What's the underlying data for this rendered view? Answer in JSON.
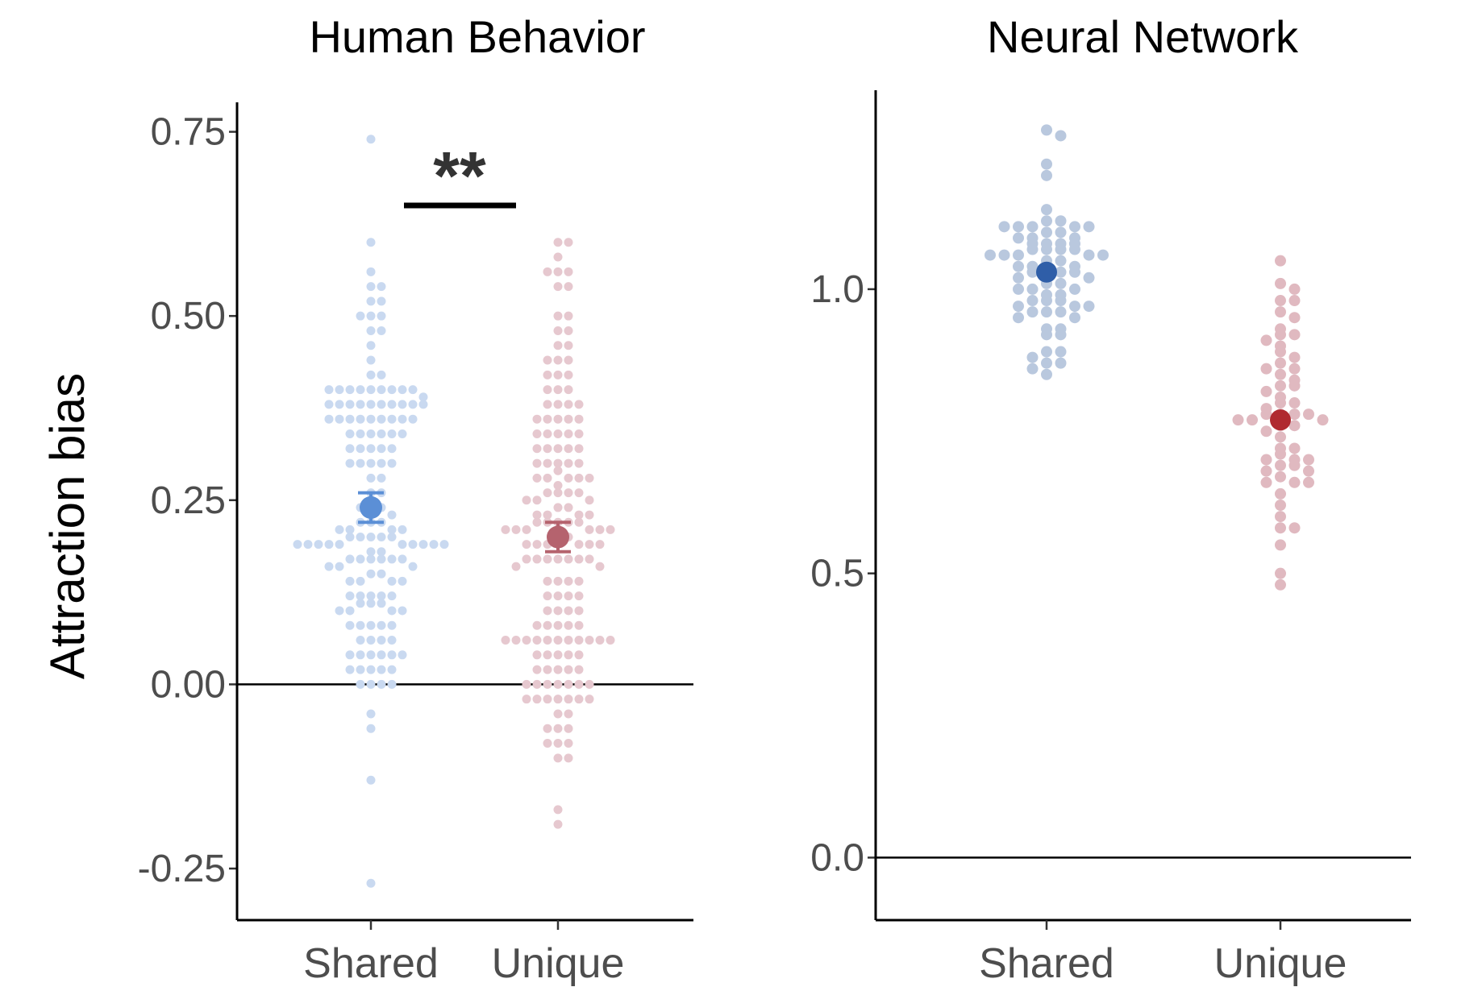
{
  "chart_data": [
    {
      "type": "scatter",
      "subtype": "beeswarm",
      "title": "Human Behavior",
      "ylabel": "Attraction bias",
      "xlabel": "",
      "categories": [
        "Shared",
        "Unique"
      ],
      "yticks": [
        "0.75",
        "0.50",
        "0.25",
        "0.00",
        "-0.25"
      ],
      "ylim": [
        -0.32,
        0.79
      ],
      "reference_line": 0,
      "significance": {
        "label": "**",
        "between": [
          "Shared",
          "Unique"
        ],
        "y": 0.65
      },
      "series": [
        {
          "name": "Shared",
          "point_color": "#c9d9f0",
          "mean_color": "#5b8fd6",
          "mean": 0.24,
          "se": 0.02,
          "values": [
            0.74,
            0.6,
            0.56,
            0.54,
            0.54,
            0.52,
            0.52,
            0.5,
            0.5,
            0.5,
            0.48,
            0.48,
            0.46,
            0.44,
            0.42,
            0.42,
            0.4,
            0.4,
            0.4,
            0.4,
            0.4,
            0.4,
            0.4,
            0.4,
            0.4,
            0.39,
            0.38,
            0.38,
            0.38,
            0.38,
            0.38,
            0.38,
            0.38,
            0.38,
            0.38,
            0.38,
            0.36,
            0.36,
            0.36,
            0.36,
            0.36,
            0.36,
            0.36,
            0.36,
            0.36,
            0.34,
            0.34,
            0.34,
            0.34,
            0.34,
            0.34,
            0.32,
            0.32,
            0.32,
            0.32,
            0.32,
            0.3,
            0.3,
            0.3,
            0.3,
            0.3,
            0.28,
            0.28,
            0.26,
            0.26,
            0.24,
            0.24,
            0.24,
            0.23,
            0.22,
            0.22,
            0.22,
            0.21,
            0.21,
            0.21,
            0.21,
            0.2,
            0.2,
            0.2,
            0.2,
            0.2,
            0.19,
            0.19,
            0.19,
            0.19,
            0.19,
            0.19,
            0.19,
            0.19,
            0.19,
            0.19,
            0.18,
            0.18,
            0.17,
            0.17,
            0.17,
            0.17,
            0.17,
            0.17,
            0.16,
            0.16,
            0.16,
            0.15,
            0.15,
            0.14,
            0.14,
            0.14,
            0.14,
            0.12,
            0.12,
            0.12,
            0.12,
            0.12,
            0.11,
            0.11,
            0.11,
            0.1,
            0.1,
            0.1,
            0.1,
            0.08,
            0.08,
            0.08,
            0.08,
            0.08,
            0.06,
            0.06,
            0.06,
            0.06,
            0.04,
            0.04,
            0.04,
            0.04,
            0.04,
            0.04,
            0.02,
            0.02,
            0.02,
            0.02,
            0.02,
            0.0,
            0.0,
            0.0,
            0.0,
            -0.04,
            -0.06,
            -0.13,
            -0.27
          ]
        },
        {
          "name": "Unique",
          "point_color": "#e6c8cf",
          "mean_color": "#b5636e",
          "mean": 0.2,
          "se": 0.02,
          "values": [
            0.6,
            0.6,
            0.58,
            0.56,
            0.56,
            0.56,
            0.54,
            0.54,
            0.5,
            0.5,
            0.48,
            0.48,
            0.46,
            0.46,
            0.44,
            0.44,
            0.44,
            0.42,
            0.42,
            0.42,
            0.4,
            0.4,
            0.4,
            0.38,
            0.38,
            0.38,
            0.38,
            0.36,
            0.36,
            0.36,
            0.36,
            0.36,
            0.34,
            0.34,
            0.34,
            0.34,
            0.34,
            0.32,
            0.32,
            0.32,
            0.32,
            0.32,
            0.3,
            0.3,
            0.3,
            0.3,
            0.3,
            0.29,
            0.28,
            0.28,
            0.28,
            0.28,
            0.28,
            0.27,
            0.26,
            0.26,
            0.26,
            0.26,
            0.25,
            0.25,
            0.25,
            0.24,
            0.24,
            0.23,
            0.23,
            0.23,
            0.23,
            0.22,
            0.22,
            0.22,
            0.22,
            0.22,
            0.21,
            0.21,
            0.21,
            0.21,
            0.21,
            0.21,
            0.2,
            0.2,
            0.19,
            0.19,
            0.19,
            0.19,
            0.19,
            0.19,
            0.17,
            0.17,
            0.17,
            0.17,
            0.17,
            0.17,
            0.17,
            0.16,
            0.16,
            0.14,
            0.14,
            0.14,
            0.14,
            0.12,
            0.12,
            0.12,
            0.12,
            0.1,
            0.1,
            0.1,
            0.1,
            0.08,
            0.08,
            0.08,
            0.08,
            0.08,
            0.06,
            0.06,
            0.06,
            0.06,
            0.06,
            0.06,
            0.06,
            0.06,
            0.06,
            0.06,
            0.06,
            0.04,
            0.04,
            0.04,
            0.04,
            0.04,
            0.02,
            0.02,
            0.02,
            0.02,
            0.02,
            0.0,
            0.0,
            0.0,
            0.0,
            0.0,
            0.0,
            0.0,
            -0.02,
            -0.02,
            -0.02,
            -0.02,
            -0.02,
            -0.02,
            -0.02,
            -0.04,
            -0.04,
            -0.06,
            -0.06,
            -0.06,
            -0.08,
            -0.08,
            -0.08,
            -0.1,
            -0.1,
            -0.17,
            -0.19
          ]
        }
      ]
    },
    {
      "type": "scatter",
      "subtype": "beeswarm",
      "title": "Neural Network",
      "ylabel": "",
      "xlabel": "",
      "categories": [
        "Shared",
        "Unique"
      ],
      "yticks": [
        "1.0",
        "0.5",
        "0.0"
      ],
      "ylim": [
        -0.11,
        1.35
      ],
      "reference_line": 0,
      "series": [
        {
          "name": "Shared",
          "point_color": "#b9c8de",
          "mean_color": "#2f5ea8",
          "mean": 1.03,
          "values": [
            1.28,
            1.27,
            1.22,
            1.2,
            1.14,
            1.12,
            1.12,
            1.11,
            1.11,
            1.11,
            1.11,
            1.11,
            1.1,
            1.1,
            1.09,
            1.09,
            1.09,
            1.08,
            1.08,
            1.08,
            1.08,
            1.07,
            1.07,
            1.07,
            1.07,
            1.06,
            1.06,
            1.06,
            1.06,
            1.06,
            1.05,
            1.05,
            1.04,
            1.04,
            1.04,
            1.03,
            1.03,
            1.03,
            1.03,
            1.02,
            1.02,
            1.01,
            1.01,
            1.0,
            1.0,
            1.0,
            0.99,
            0.99,
            0.98,
            0.98,
            0.98,
            0.97,
            0.97,
            0.97,
            0.96,
            0.96,
            0.96,
            0.95,
            0.95,
            0.93,
            0.93,
            0.92,
            0.92,
            0.89,
            0.89,
            0.88,
            0.87,
            0.87,
            0.86,
            0.85
          ]
        },
        {
          "name": "Unique",
          "point_color": "#e0b9c0",
          "mean_color": "#b02a30",
          "mean": 0.77,
          "values": [
            1.05,
            1.01,
            1.0,
            0.98,
            0.98,
            0.96,
            0.95,
            0.93,
            0.92,
            0.92,
            0.91,
            0.9,
            0.89,
            0.88,
            0.87,
            0.86,
            0.86,
            0.85,
            0.84,
            0.83,
            0.83,
            0.82,
            0.81,
            0.8,
            0.8,
            0.79,
            0.78,
            0.78,
            0.78,
            0.78,
            0.77,
            0.77,
            0.77,
            0.76,
            0.76,
            0.75,
            0.74,
            0.72,
            0.72,
            0.71,
            0.7,
            0.7,
            0.7,
            0.69,
            0.69,
            0.68,
            0.68,
            0.67,
            0.66,
            0.66,
            0.66,
            0.64,
            0.62,
            0.6,
            0.58,
            0.58,
            0.55,
            0.5,
            0.48
          ]
        }
      ]
    }
  ]
}
